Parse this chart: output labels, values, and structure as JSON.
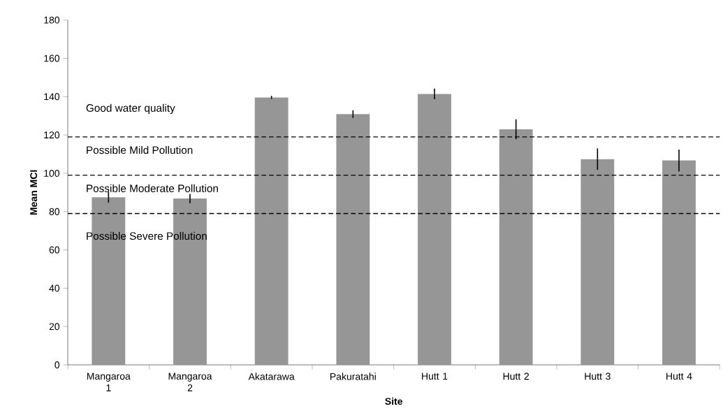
{
  "chart_data": {
    "type": "bar",
    "categories": [
      "Mangaroa 1",
      "Mangaroa 2",
      "Akatarawa",
      "Pakuratahi",
      "Hutt 1",
      "Hutt 2",
      "Hutt 3",
      "Hutt 4"
    ],
    "values": [
      87.5,
      86.8,
      139.6,
      130.9,
      141.4,
      123.0,
      107.4,
      106.7
    ],
    "errors": [
      2.8,
      2.4,
      0.8,
      2.0,
      2.8,
      5.2,
      5.6,
      5.7
    ],
    "color": "#969696",
    "xlabel": "Site",
    "ylabel": "Mean MCI",
    "ylim": [
      0,
      180
    ],
    "yticks": [
      0,
      20,
      40,
      60,
      80,
      100,
      120,
      140,
      160,
      180
    ],
    "ref_lines": [
      {
        "axis": "y",
        "value": 119,
        "color": "#000000",
        "line_style": "dashed"
      },
      {
        "axis": "y",
        "value": 99,
        "color": "#000000",
        "line_style": "dashed"
      },
      {
        "axis": "y",
        "value": 79,
        "color": "#000000",
        "line_style": "dashed"
      }
    ],
    "annotations": [
      "Good water quality",
      "Possible Mild Pollution",
      "Possible Moderate Pollution",
      "Possible Severe Pollution"
    ]
  }
}
